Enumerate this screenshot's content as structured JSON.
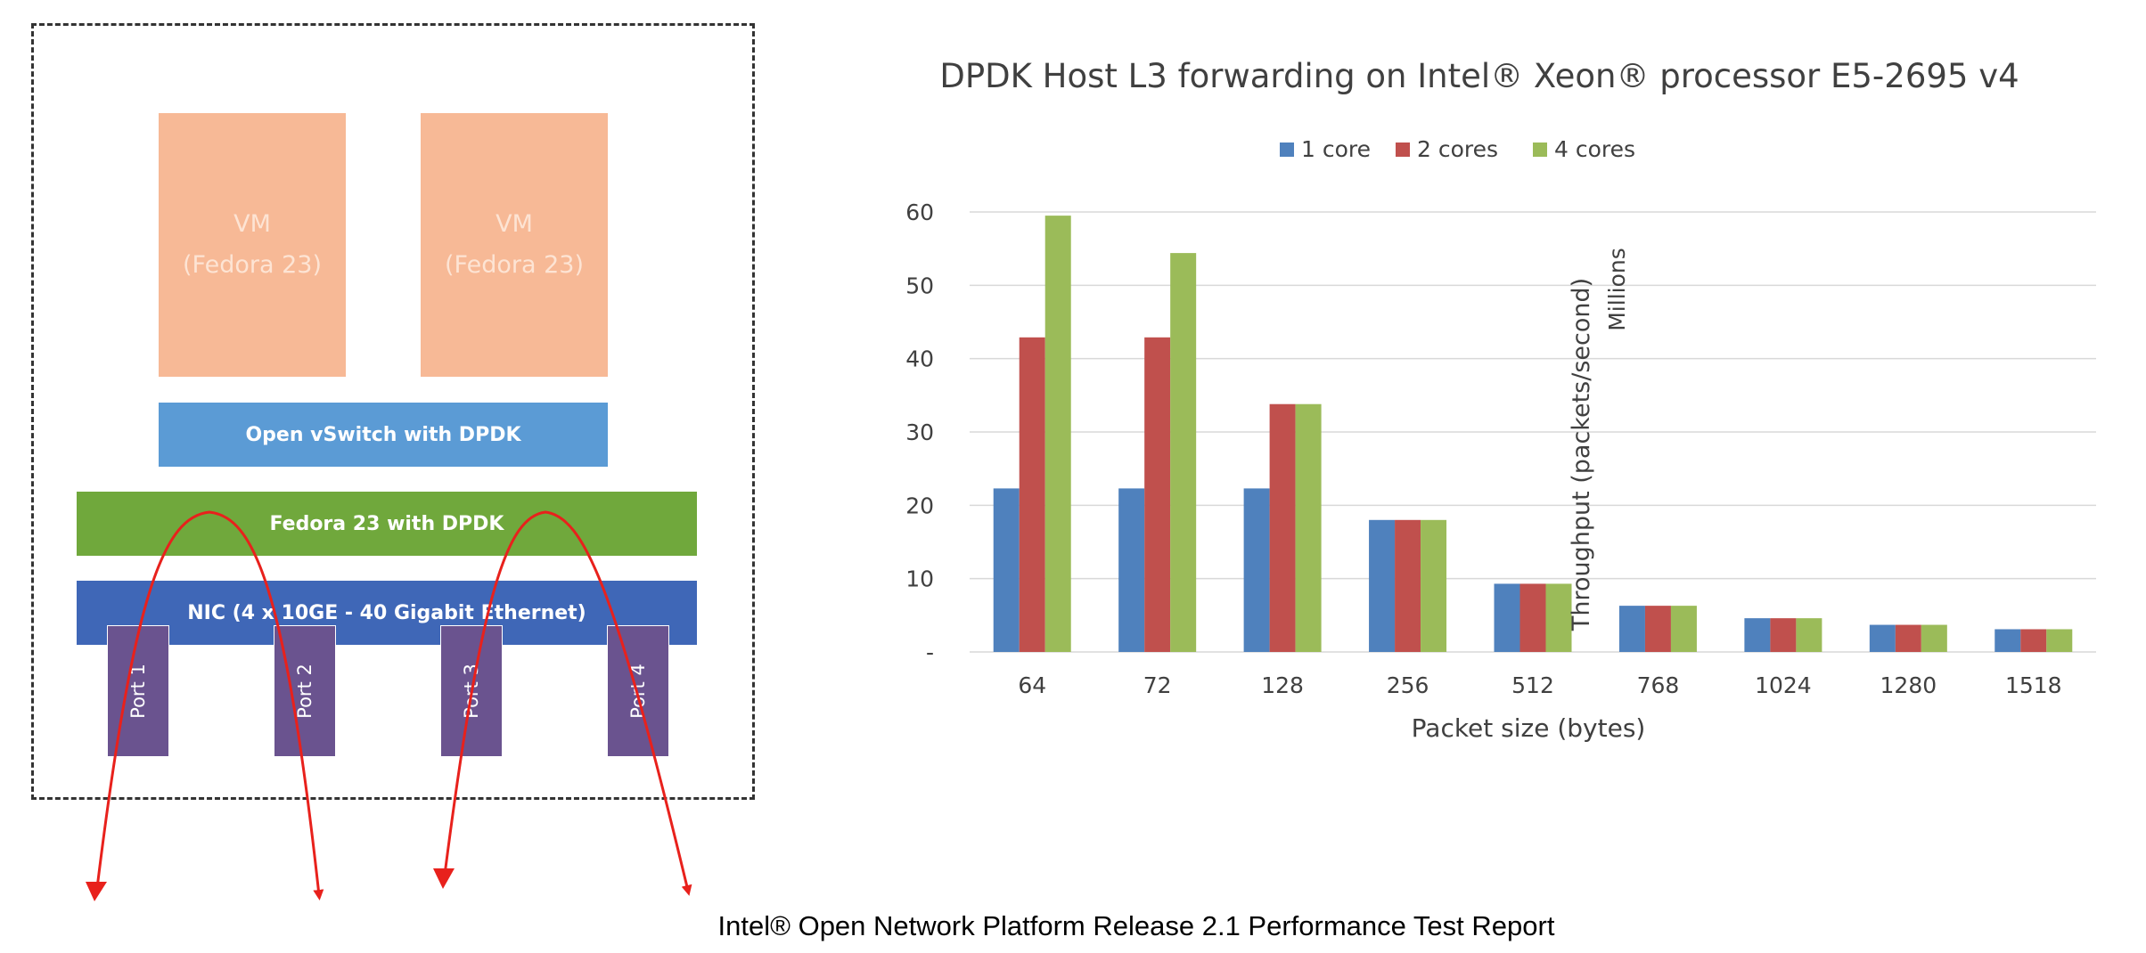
{
  "diagram": {
    "vm1": {
      "line1": "VM",
      "line2": "(Fedora 23)"
    },
    "vm2": {
      "line1": "VM",
      "line2": "(Fedora 23)"
    },
    "ovs_label": "Open vSwitch with DPDK",
    "fedora_label": "Fedora 23 with DPDK",
    "nic_label": "NIC (4 x 10GE - 40 Gigabit Ethernet)",
    "ports": [
      "Port 1",
      "Port 2",
      "Port 3",
      "Port 4"
    ],
    "colors": {
      "vm": "#f7b996",
      "ovs": "#5b9bd5",
      "fedora": "#70a83c",
      "nic": "#3f67b7",
      "port": "#6a538f",
      "arrow": "#e8211c"
    }
  },
  "chart_data": {
    "type": "bar",
    "title": "DPDK Host L3 forwarding on Intel® Xeon® processor E5-2695 v4",
    "xlabel": "Packet size (bytes)",
    "ylabel": "Throughput (packets/second)",
    "yunit": "Millions",
    "ylim": [
      0,
      60
    ],
    "yticks": [
      0,
      10,
      20,
      30,
      40,
      50,
      60
    ],
    "ytick_labels": [
      "-",
      "10",
      "20",
      "30",
      "40",
      "50",
      "60"
    ],
    "grid": true,
    "legend_position": "top",
    "categories": [
      "64",
      "72",
      "128",
      "256",
      "512",
      "768",
      "1024",
      "1280",
      "1518"
    ],
    "series": [
      {
        "name": "1 core",
        "color": "#4f81bd",
        "values": [
          22.3,
          22.3,
          22.3,
          18.0,
          9.3,
          6.3,
          4.6,
          3.7,
          3.1
        ]
      },
      {
        "name": "2 cores",
        "color": "#c0504d",
        "values": [
          42.9,
          42.9,
          33.8,
          18.0,
          9.3,
          6.3,
          4.6,
          3.7,
          3.1
        ]
      },
      {
        "name": "4 cores",
        "color": "#9bbb59",
        "values": [
          59.5,
          54.4,
          33.8,
          18.0,
          9.3,
          6.3,
          4.6,
          3.7,
          3.1
        ]
      }
    ]
  },
  "caption": "Intel® Open Network Platform Release 2.1 Performance Test Report"
}
